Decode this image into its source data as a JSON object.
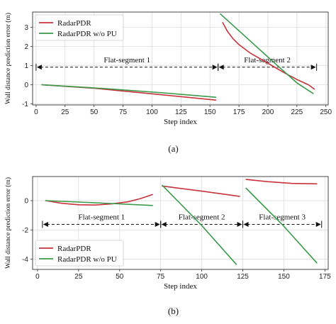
{
  "chart_data": [
    {
      "panel_label": "(a)",
      "type": "line",
      "xlabel": "Step index",
      "ylabel": "Wall distance prediction error (m)",
      "xlim": [
        -3,
        252
      ],
      "ylim": [
        -1.05,
        3.8
      ],
      "xticks": [
        0,
        25,
        50,
        75,
        100,
        125,
        150,
        175,
        200,
        225,
        250
      ],
      "yticks": [
        -1,
        0,
        1,
        2,
        3
      ],
      "grid": true,
      "legend": "top-left",
      "series": [
        {
          "name": "RadarPDR",
          "color": "#c8323c",
          "segments": [
            [
              [
                5,
                0.0
              ],
              [
                50,
                -0.18
              ],
              [
                100,
                -0.47
              ],
              [
                155,
                -0.8
              ]
            ],
            [
              [
                161,
                3.25
              ],
              [
                165,
                2.8
              ],
              [
                170,
                2.4
              ],
              [
                175,
                2.1
              ],
              [
                185,
                1.65
              ],
              [
                195,
                1.3
              ],
              [
                205,
                0.95
              ],
              [
                215,
                0.6
              ],
              [
                225,
                0.28
              ],
              [
                235,
                0.0
              ],
              [
                240,
                -0.22
              ]
            ]
          ]
        },
        {
          "name": "RadarPDR w/o PU",
          "color": "#3a9a4a",
          "segments": [
            [
              [
                5,
                0.0
              ],
              [
                60,
                -0.2
              ],
              [
                110,
                -0.42
              ],
              [
                155,
                -0.65
              ]
            ],
            [
              [
                159,
                3.7
              ],
              [
                180,
                2.55
              ],
              [
                200,
                1.45
              ],
              [
                225,
                0.1
              ],
              [
                239,
                -0.45
              ]
            ]
          ]
        }
      ],
      "annotations": [
        {
          "text": "Flat-segment 1",
          "x_from": 0,
          "x_to": 157,
          "y": 0.92
        },
        {
          "text": "Flat-segment 2",
          "x_from": 157,
          "x_to": 242,
          "y": 0.92
        }
      ]
    },
    {
      "panel_label": "(b)",
      "type": "line",
      "xlabel": "Step index",
      "ylabel": "Wall distance prediction error (m)",
      "xlim": [
        -3,
        177
      ],
      "ylim": [
        -4.7,
        1.65
      ],
      "xticks": [
        0,
        25,
        50,
        75,
        100,
        125,
        150,
        175
      ],
      "yticks": [
        -4,
        -2,
        0
      ],
      "grid": true,
      "legend": "bottom-left",
      "series": [
        {
          "name": "RadarPDR",
          "color": "#c8323c",
          "segments": [
            [
              [
                5,
                0.0
              ],
              [
                15,
                -0.18
              ],
              [
                25,
                -0.28
              ],
              [
                35,
                -0.3
              ],
              [
                45,
                -0.22
              ],
              [
                55,
                -0.08
              ],
              [
                63,
                0.15
              ],
              [
                70,
                0.42
              ]
            ],
            [
              [
                76,
                1.0
              ],
              [
                100,
                0.65
              ],
              [
                123,
                0.3
              ]
            ],
            [
              [
                127,
                1.45
              ],
              [
                140,
                1.3
              ],
              [
                155,
                1.18
              ],
              [
                170,
                1.15
              ]
            ]
          ]
        },
        {
          "name": "RadarPDR w/o PU",
          "color": "#3a9a4a",
          "segments": [
            [
              [
                5,
                0.0
              ],
              [
                40,
                -0.17
              ],
              [
                70,
                -0.33
              ]
            ],
            [
              [
                76,
                1.05
              ],
              [
                100,
                -1.7
              ],
              [
                121,
                -4.35
              ]
            ],
            [
              [
                127,
                0.85
              ],
              [
                150,
                -1.75
              ],
              [
                170,
                -4.25
              ]
            ]
          ]
        }
      ],
      "annotations": [
        {
          "text": "Flat-segment 1",
          "x_from": 3,
          "x_to": 75,
          "y": -1.62
        },
        {
          "text": "Flat-segment 2",
          "x_from": 75,
          "x_to": 125,
          "y": -1.62
        },
        {
          "text": "Flat-segment 3",
          "x_from": 125,
          "x_to": 173,
          "y": -1.62
        }
      ]
    }
  ]
}
